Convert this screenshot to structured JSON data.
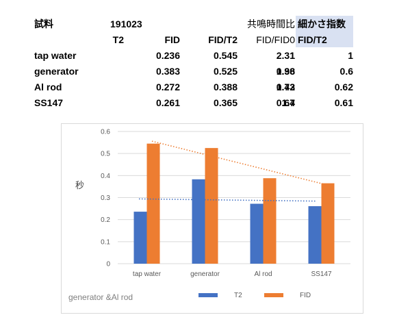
{
  "table": {
    "sample_label": "試料",
    "date": "191023",
    "resonance_header": "共鳴時間比",
    "fineness_header": "細かさ指数",
    "col_t2": "T2",
    "col_fid": "FID",
    "col_ratio": "FID/T2",
    "col_fid_fid0": "FID/FID0",
    "col_fid_t2": "FID/T2",
    "rows": [
      {
        "name": "tap water",
        "t2": "0.236",
        "fid": "0.545",
        "ratio": "2.31",
        "fid_fid0": "1",
        "fineness": "1"
      },
      {
        "name": "generator",
        "t2": "0.383",
        "fid": "0.525",
        "ratio": "1.38",
        "fid_fid0": "0.96",
        "fineness": "0.6"
      },
      {
        "name": "Al rod",
        "t2": "0.272",
        "fid": "0.388",
        "ratio": "1.43",
        "fid_fid0": "0.72",
        "fineness": "0.62"
      },
      {
        "name": "SS147",
        "t2": "0.261",
        "fid": "0.365",
        "ratio": "1.4",
        "fid_fid0": "0.67",
        "fineness": "0.61"
      }
    ]
  },
  "chart_data": {
    "type": "bar",
    "categories": [
      "tap water",
      "generator",
      "Al rod",
      "SS147"
    ],
    "series": [
      {
        "name": "T2",
        "values": [
          0.236,
          0.383,
          0.272,
          0.261
        ],
        "color": "#4472c4",
        "trendline": [
          0.294,
          0.284
        ]
      },
      {
        "name": "FID",
        "values": [
          0.545,
          0.525,
          0.388,
          0.365
        ],
        "color": "#ed7d31",
        "trendline": [
          0.556,
          0.355
        ]
      }
    ],
    "ylabel": "秒",
    "ylim": [
      0,
      0.6
    ],
    "yticks": [
      0,
      0.1,
      0.2,
      0.3,
      0.4,
      0.5,
      0.6
    ],
    "grid": true,
    "legend_position": "bottom",
    "annotation": "generator &Al rod",
    "colors": {
      "gridline": "#d9d9d9",
      "axis_text": "#595959",
      "annotation": "#7f7f7f",
      "highlight": "#d9e1f2"
    }
  }
}
